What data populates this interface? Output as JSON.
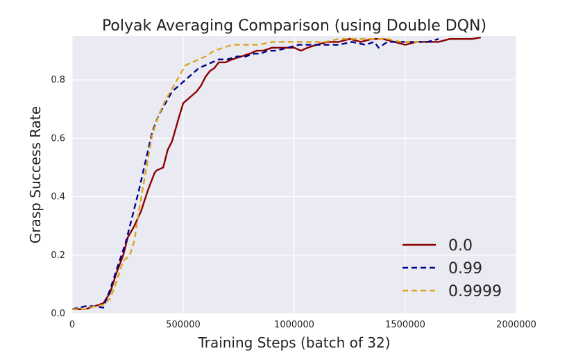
{
  "chart_data": {
    "type": "line",
    "title": "Polyak Averaging Comparison (using Double DQN)",
    "xlabel": "Training Steps (batch of 32)",
    "ylabel": "Grasp Success Rate",
    "xlim": [
      0,
      2000000
    ],
    "ylim": [
      0.0,
      0.95
    ],
    "xticks": [
      0,
      500000,
      1000000,
      1500000,
      2000000
    ],
    "xtick_labels": [
      "0",
      "500000",
      "1000000",
      "1500000",
      "2000000"
    ],
    "yticks": [
      0.0,
      0.2,
      0.4,
      0.6,
      0.8
    ],
    "ytick_labels": [
      "0.0",
      "0.2",
      "0.4",
      "0.6",
      "0.8"
    ],
    "grid": true,
    "legend_position": "bottom-right",
    "series": [
      {
        "name": "0.0",
        "color": "#8b0000",
        "dash": "solid",
        "x": [
          0,
          60000,
          100000,
          140000,
          170000,
          200000,
          230000,
          250000,
          280000,
          310000,
          340000,
          370000,
          380000,
          410000,
          430000,
          450000,
          480000,
          500000,
          530000,
          560000,
          580000,
          600000,
          620000,
          640000,
          660000,
          690000,
          720000,
          760000,
          800000,
          830000,
          860000,
          900000,
          950000,
          1000000,
          1030000,
          1060000,
          1100000,
          1150000,
          1200000,
          1250000,
          1300000,
          1350000,
          1400000,
          1450000,
          1500000,
          1550000,
          1600000,
          1650000,
          1700000,
          1750000,
          1800000,
          1840000
        ],
        "y": [
          0.015,
          0.015,
          0.025,
          0.035,
          0.07,
          0.14,
          0.2,
          0.26,
          0.3,
          0.35,
          0.42,
          0.48,
          0.49,
          0.5,
          0.56,
          0.59,
          0.67,
          0.72,
          0.74,
          0.76,
          0.78,
          0.81,
          0.83,
          0.84,
          0.86,
          0.86,
          0.87,
          0.88,
          0.89,
          0.9,
          0.9,
          0.91,
          0.91,
          0.91,
          0.9,
          0.91,
          0.92,
          0.93,
          0.93,
          0.94,
          0.93,
          0.94,
          0.94,
          0.93,
          0.92,
          0.93,
          0.93,
          0.93,
          0.94,
          0.94,
          0.94,
          0.945
        ]
      },
      {
        "name": "0.99",
        "color": "#00008b",
        "dash": "dashed",
        "x": [
          0,
          60000,
          100000,
          140000,
          170000,
          200000,
          240000,
          270000,
          300000,
          330000,
          360000,
          390000,
          420000,
          450000,
          480000,
          510000,
          540000,
          570000,
          600000,
          630000,
          660000,
          700000,
          740000,
          780000,
          820000,
          850000,
          880000,
          920000,
          970000,
          1020000,
          1080000,
          1140000,
          1200000,
          1260000,
          1320000,
          1360000,
          1380000,
          1420000,
          1480000,
          1540000,
          1600000,
          1650000
        ],
        "y": [
          0.015,
          0.025,
          0.025,
          0.02,
          0.08,
          0.15,
          0.24,
          0.33,
          0.42,
          0.52,
          0.62,
          0.68,
          0.72,
          0.76,
          0.78,
          0.8,
          0.82,
          0.84,
          0.85,
          0.86,
          0.87,
          0.87,
          0.88,
          0.88,
          0.89,
          0.89,
          0.9,
          0.9,
          0.91,
          0.92,
          0.92,
          0.92,
          0.92,
          0.93,
          0.92,
          0.93,
          0.91,
          0.93,
          0.93,
          0.93,
          0.93,
          0.94
        ]
      },
      {
        "name": "0.9999",
        "color": "#daa520",
        "dash": "dashed",
        "x": [
          0,
          60000,
          100000,
          140000,
          170000,
          200000,
          230000,
          260000,
          280000,
          300000,
          330000,
          360000,
          390000,
          420000,
          450000,
          480000,
          510000,
          540000,
          570000,
          600000,
          640000,
          680000,
          720000,
          780000,
          840000,
          900000,
          960000,
          1020000,
          1080000,
          1140000,
          1200000,
          1260000,
          1320000,
          1380000,
          1420000,
          1480000,
          1540000,
          1580000
        ],
        "y": [
          0.015,
          0.015,
          0.025,
          0.03,
          0.05,
          0.11,
          0.18,
          0.2,
          0.25,
          0.35,
          0.48,
          0.61,
          0.68,
          0.73,
          0.77,
          0.81,
          0.85,
          0.86,
          0.87,
          0.88,
          0.9,
          0.91,
          0.92,
          0.92,
          0.92,
          0.93,
          0.93,
          0.93,
          0.93,
          0.93,
          0.94,
          0.94,
          0.94,
          0.94,
          0.94,
          0.93,
          0.93,
          0.93
        ]
      }
    ]
  }
}
